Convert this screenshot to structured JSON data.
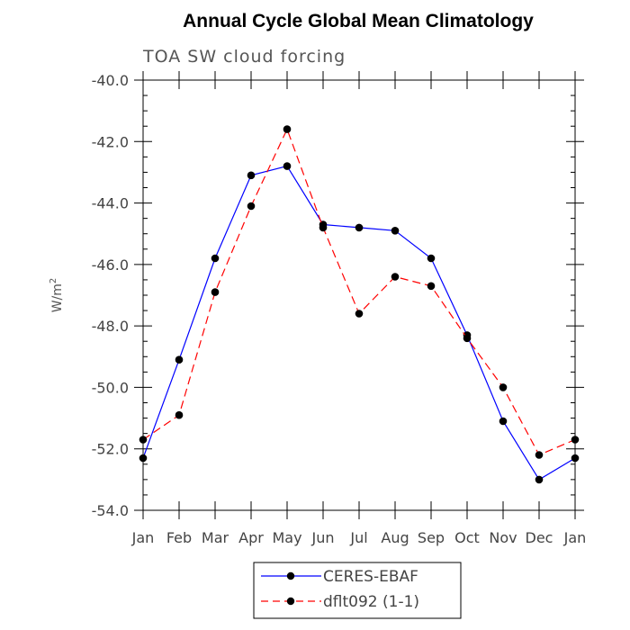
{
  "chart_data": {
    "type": "line",
    "title": "Annual Cycle Global Mean Climatology",
    "subtitle": "TOA SW cloud forcing",
    "ylabel": "W/m",
    "ylabel_superscript": "2",
    "ylim": [
      -54.0,
      -40.0
    ],
    "yticks": [
      "-40.0",
      "-42.0",
      "-44.0",
      "-46.0",
      "-48.0",
      "-50.0",
      "-52.0",
      "-54.0"
    ],
    "ytick_values": [
      -40,
      -42,
      -44,
      -46,
      -48,
      -50,
      -52,
      -54
    ],
    "categories": [
      "Jan",
      "Feb",
      "Mar",
      "Apr",
      "May",
      "Jun",
      "Jul",
      "Aug",
      "Sep",
      "Oct",
      "Nov",
      "Dec",
      "Jan"
    ],
    "series": [
      {
        "name": "CERES-EBAF",
        "color": "#0000ff",
        "dash": "solid",
        "values": [
          -52.3,
          -49.1,
          -45.8,
          -43.1,
          -42.8,
          -44.7,
          -44.8,
          -44.9,
          -45.8,
          -48.3,
          -51.1,
          -53.0,
          -52.3
        ]
      },
      {
        "name": "dflt092 (1-1)",
        "color": "#ff0000",
        "dash": "dashed",
        "values": [
          -51.7,
          -50.9,
          -46.9,
          -44.1,
          -41.6,
          -44.8,
          -47.6,
          -46.4,
          -46.7,
          -48.4,
          -50.0,
          -52.2,
          -51.7
        ]
      }
    ]
  }
}
